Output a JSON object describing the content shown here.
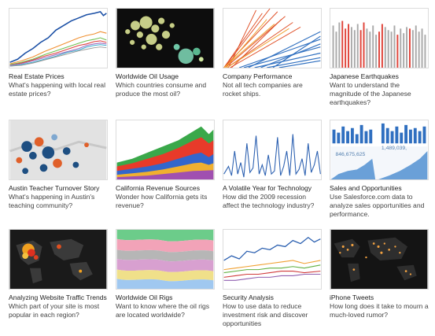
{
  "gallery": {
    "items": [
      {
        "title": "Real Estate Prices",
        "description": "What's happening with local real estate prices?"
      },
      {
        "title": "Worldwide Oil Usage",
        "description": "Which countries consume and produce the most oil?"
      },
      {
        "title": "Company Performance",
        "description": "Not all tech companies are rocket ships."
      },
      {
        "title": "Japanese Earthquakes",
        "description": "Want to understand the magnitude of the Japanese earthquakes?"
      },
      {
        "title": "Austin Teacher Turnover Story",
        "description": "What's happening in Austin's teaching community?"
      },
      {
        "title": "California Revenue Sources",
        "description": "Wonder how California gets its revenue?"
      },
      {
        "title": "A Volatile Year for Technology",
        "description": "How did the 2009 recession affect the technology industry?"
      },
      {
        "title": "Sales and Opportunities",
        "description": "Use Salesforce.com data to analyze sales opportunities and performance."
      },
      {
        "title": "Analyzing Website Traffic Trends",
        "description": "Which part of your site is most popular in each region?"
      },
      {
        "title": "Worldwide Oil Rigs",
        "description": "Want to know where the oil rigs are located worldwide?"
      },
      {
        "title": "Security Analysis",
        "description": "How to use data to reduce investment risk and discover opportunities"
      },
      {
        "title": "iPhone Tweets",
        "description": "How long does it take to mourn a much-loved rumor?"
      }
    ],
    "thumb_labels": {
      "sales_value_1": "846,675,625",
      "sales_value_2": "1,489,039,"
    }
  }
}
